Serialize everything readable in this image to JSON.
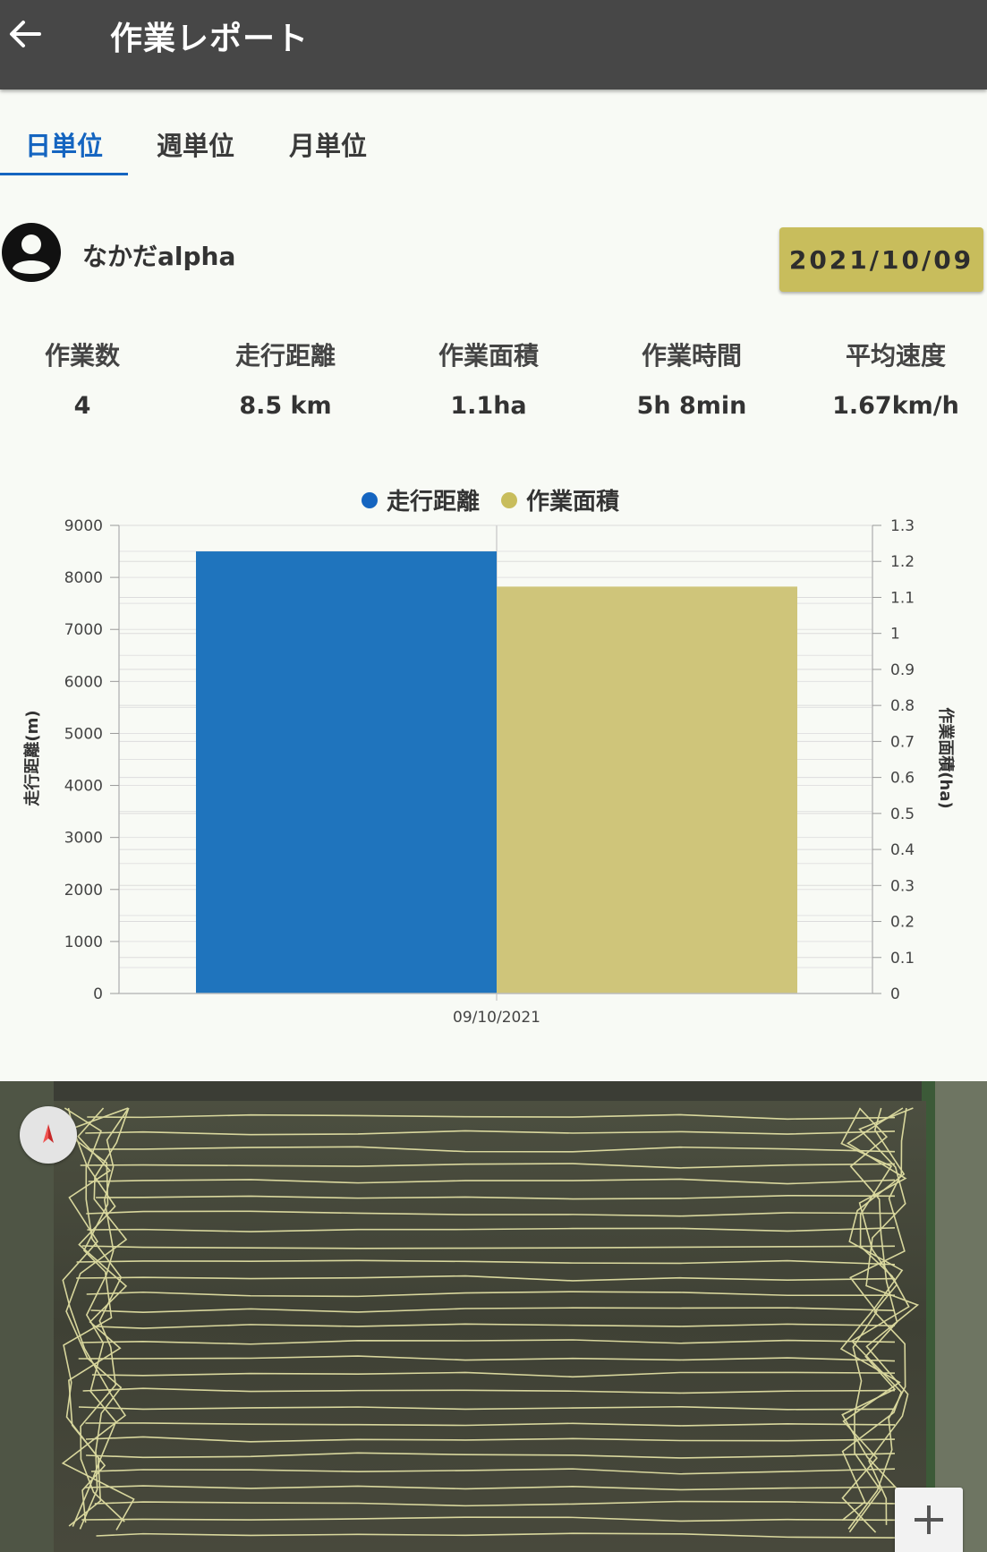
{
  "appbar": {
    "title": "作業レポート"
  },
  "tabs": [
    {
      "label": "日単位",
      "active": true
    },
    {
      "label": "週単位",
      "active": false
    },
    {
      "label": "月単位",
      "active": false
    }
  ],
  "user": {
    "name": "なかだalpha"
  },
  "date_button": {
    "label": "2021/10/09"
  },
  "stats": [
    {
      "label": "作業数",
      "value": "4"
    },
    {
      "label": "走行距離",
      "value": "8.5 km"
    },
    {
      "label": "作業面積",
      "value": "1.1ha"
    },
    {
      "label": "作業時間",
      "value": "5h 8min"
    },
    {
      "label": "平均速度",
      "value": "1.67km/h"
    }
  ],
  "colors": {
    "accent": "#1565c0",
    "distance": "#1f74bd",
    "area": "#cfc57a",
    "date_button": "#c8bd5c",
    "appbar": "#474747"
  },
  "chart_data": {
    "type": "bar",
    "categories": [
      "09/10/2021"
    ],
    "series": [
      {
        "name": "走行距離",
        "values": [
          8500
        ],
        "axis": "left"
      },
      {
        "name": "作業面積",
        "values": [
          1.13
        ],
        "axis": "right"
      }
    ],
    "ylabel": "走行距離(m)",
    "ylabel_right": "作業面積(ha)",
    "ylim": [
      0,
      9000
    ],
    "ylim_right": [
      0,
      1.3
    ],
    "yticks": [
      "0",
      "1000",
      "2000",
      "3000",
      "4000",
      "5000",
      "6000",
      "7000",
      "8000",
      "9000"
    ],
    "yticks_right": [
      "0",
      "0.1",
      "0.2",
      "0.3",
      "0.4",
      "0.5",
      "0.6",
      "0.7",
      "0.8",
      "0.9",
      "1",
      "1.1",
      "1.2",
      "1.3"
    ],
    "legend_position": "top-center",
    "grid": true
  },
  "map": {
    "type": "satellite",
    "compass_icon": "compass-icon",
    "zoom_icon": "plus-icon"
  }
}
